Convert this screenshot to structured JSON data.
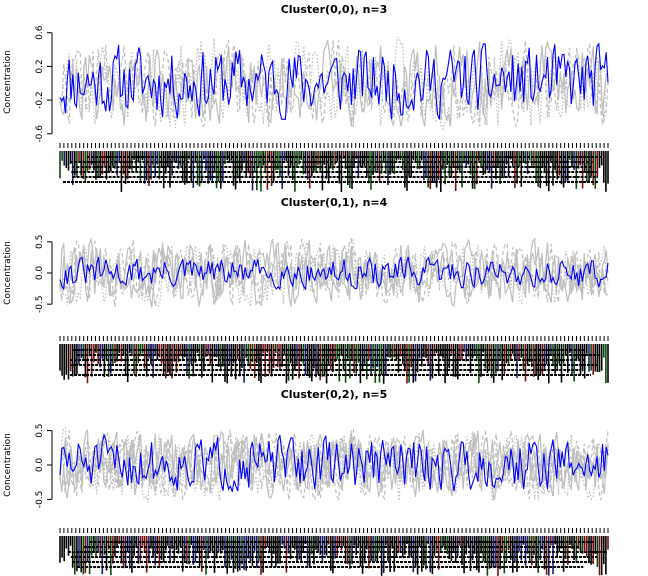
{
  "chart_data": [
    {
      "type": "line",
      "title": "Cluster(0,0), n=3",
      "ylabel": "Concentration",
      "xlabel": "",
      "ylim": [
        -0.65,
        0.68
      ],
      "yticks": [
        -0.6,
        -0.2,
        0.2,
        0.6
      ],
      "ytick_labels": [
        "-0.6",
        "-0.2",
        "0.2",
        "0.6"
      ],
      "n_points": 300,
      "grid": false,
      "series_colors": {
        "members": "#bebebe",
        "centroid": "#0000ff"
      },
      "series": [
        {
          "role": "centroid",
          "amp": 0.28,
          "base": 0.02,
          "seed": 11
        }
      ],
      "members": [
        {
          "style": "solid",
          "amp": 0.32,
          "seed": 21
        },
        {
          "style": "dashed",
          "amp": 0.32,
          "seed": 22
        },
        {
          "style": "dotted",
          "amp": 0.34,
          "seed": 23
        }
      ]
    },
    {
      "type": "line",
      "title": "Cluster(0,1), n=4",
      "ylabel": "Concentration",
      "xlabel": "",
      "ylim": [
        -0.85,
        0.85
      ],
      "yticks": [
        -0.5,
        0.0,
        0.5
      ],
      "ytick_labels": [
        "-0.5",
        "0.0",
        "0.5"
      ],
      "n_points": 300,
      "grid": false,
      "series_colors": {
        "members": "#bebebe",
        "centroid": "#0000ff"
      },
      "series": [
        {
          "role": "centroid",
          "amp": 0.16,
          "base": 0.0,
          "seed": 31
        }
      ],
      "members": [
        {
          "style": "solid",
          "amp": 0.34,
          "seed": 41
        },
        {
          "style": "dashed",
          "amp": 0.34,
          "seed": 42
        },
        {
          "style": "dotted",
          "amp": 0.34,
          "seed": 43
        },
        {
          "style": "solid",
          "amp": 0.3,
          "seed": 44
        }
      ]
    },
    {
      "type": "line",
      "title": "Cluster(0,2), n=5",
      "ylabel": "Concentration",
      "xlabel": "",
      "ylim": [
        -0.8,
        0.8
      ],
      "yticks": [
        -0.5,
        0.0,
        0.5
      ],
      "ytick_labels": [
        "-0.5",
        "0.0",
        "0.5"
      ],
      "n_points": 300,
      "grid": false,
      "series_colors": {
        "members": "#bebebe",
        "centroid": "#0000ff"
      },
      "series": [
        {
          "role": "centroid",
          "amp": 0.26,
          "base": 0.02,
          "seed": 51
        }
      ],
      "members": [
        {
          "style": "solid",
          "amp": 0.32,
          "seed": 61
        },
        {
          "style": "dashed",
          "amp": 0.32,
          "seed": 62
        },
        {
          "style": "dotted",
          "amp": 0.34,
          "seed": 63
        },
        {
          "style": "solid",
          "amp": 0.3,
          "seed": 64
        },
        {
          "style": "dashed",
          "amp": 0.3,
          "seed": 65
        }
      ]
    }
  ]
}
